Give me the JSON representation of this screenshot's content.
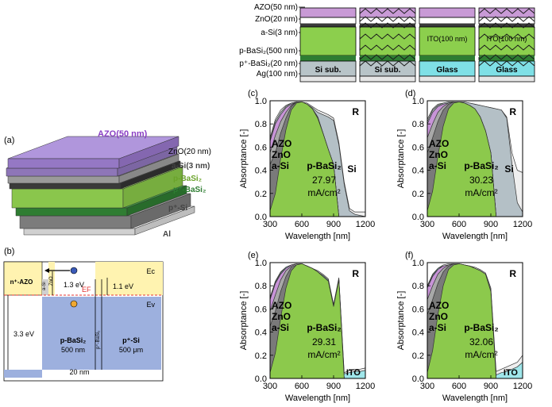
{
  "layer_stacks": {
    "labels": [
      "AZO(50 nm)",
      "ZnO(20 nm)",
      "a-Si(3 nm)",
      "p-BaSi₂(500 nm)",
      "p⁺-BaSi₂(20 nm)",
      "Ag(100 nm)"
    ],
    "stacks": [
      {
        "substrate": "Si sub.",
        "textured": false,
        "colors": {
          "azo": "#c89ad6",
          "active": "#8ccf4d",
          "sub": "#b8c4c8",
          "ag": "#e6e6e6"
        }
      },
      {
        "substrate": "Si sub.",
        "textured": true,
        "colors": {
          "azo": "#c89ad6",
          "active": "#8ccf4d",
          "sub": "#b8c4c8",
          "ag": "#e6e6e6"
        }
      },
      {
        "substrate": "Glass",
        "textured": false,
        "ito_label": "ITO(100 nm)",
        "colors": {
          "azo": "#c89ad6",
          "active": "#8ccf4d",
          "sub": "#7fe0e6",
          "ag": "#e6e6e6"
        }
      },
      {
        "substrate": "Glass",
        "textured": true,
        "ito_label": "ITO(100 nm)",
        "colors": {
          "azo": "#c89ad6",
          "active": "#8ccf4d",
          "sub": "#7fe0e6",
          "ag": "#e6e6e6"
        }
      }
    ]
  },
  "panel_a": {
    "label": "(a)",
    "layers": [
      "AZO(50 nm)",
      "ZnO(20 nm)",
      "a-Si(3 nm)",
      "p-BaSi₂",
      "p⁺-BaSi₂",
      "p⁺-Si",
      "Al"
    ],
    "colors": {
      "azo": "#a98bd0",
      "azo_text": "#8a3fc4",
      "active": "#8cc94c",
      "active_text": "#6aa32a",
      "dark": "#2e7d32",
      "si": "#8a8a8a",
      "al": "#d9d9d9"
    }
  },
  "panel_b": {
    "label": "(b)",
    "regions": [
      "n⁺-AZO",
      "a-Si",
      "ZnO",
      "p-BaSi₂",
      "500 nm",
      "p⁺-BaSi₂",
      "p⁺-Si",
      "500 μm"
    ],
    "energies": [
      "1.3 eV",
      "1.1 eV",
      "3.3 eV",
      "20 nm"
    ],
    "levels": [
      "Ec",
      "EF",
      "Ev"
    ],
    "colors": {
      "azo": "#fff3b0",
      "basi": "#9db0de",
      "ef": "#e03030"
    }
  },
  "axes": {
    "xlabel": "Wavelength [nm]",
    "ylabel": "Absorptance [-]",
    "x_ticks": [
      "300",
      "600",
      "900",
      "1200"
    ],
    "y_ticks": [
      "0.0",
      "0.2",
      "0.4",
      "0.6",
      "0.8",
      "1.0"
    ]
  },
  "chart_data": [
    {
      "panel": "(c)",
      "type": "area",
      "xlim": [
        300,
        1200
      ],
      "ylim": [
        0,
        1.0
      ],
      "current": "27.97",
      "unit": "mA/cm²",
      "layer_labels": [
        "AZO",
        "ZnO",
        "a-Si",
        "p-BaSi₂",
        "Si"
      ],
      "reflect_label": "R",
      "x": [
        300,
        350,
        400,
        450,
        500,
        550,
        600,
        650,
        700,
        750,
        800,
        850,
        900,
        950,
        1000,
        1050,
        1100,
        1150,
        1200
      ],
      "series": [
        {
          "name": "p-BaSi₂",
          "values": [
            0.05,
            0.2,
            0.5,
            0.75,
            0.92,
            0.98,
            0.99,
            0.97,
            0.93,
            0.85,
            0.72,
            0.58,
            0.45,
            0.0,
            0.0,
            0.0,
            0.0,
            0.0,
            0.0
          ]
        },
        {
          "name": "a-Si",
          "values": [
            0.45,
            0.55,
            0.72,
            0.85,
            0.95,
            0.99,
            0.99,
            0.97,
            0.93,
            0.86,
            0.72,
            0.58,
            0.45,
            0.0,
            0.0,
            0.0,
            0.0,
            0.0,
            0.0
          ]
        },
        {
          "name": "ZnO",
          "values": [
            0.55,
            0.7,
            0.82,
            0.9,
            0.96,
            0.99,
            0.99,
            0.97,
            0.93,
            0.86,
            0.72,
            0.58,
            0.45,
            0.0,
            0.0,
            0.0,
            0.0,
            0.0,
            0.0
          ]
        },
        {
          "name": "AZO",
          "values": [
            0.65,
            0.8,
            0.88,
            0.94,
            0.97,
            0.99,
            0.99,
            0.97,
            0.93,
            0.86,
            0.72,
            0.58,
            0.45,
            0.0,
            0.0,
            0.0,
            0.0,
            0.0,
            0.0
          ]
        },
        {
          "name": "Si",
          "values": [
            0.66,
            0.82,
            0.9,
            0.95,
            0.98,
            0.99,
            0.99,
            0.97,
            0.94,
            0.9,
            0.88,
            0.86,
            0.83,
            0.62,
            0.28,
            0.05,
            0.02,
            0.01,
            0.0
          ]
        },
        {
          "name": "R",
          "values": [
            0.68,
            0.84,
            0.92,
            0.96,
            0.98,
            0.99,
            0.99,
            0.98,
            0.95,
            0.92,
            0.9,
            0.88,
            0.85,
            0.64,
            0.3,
            0.07,
            0.04,
            0.04,
            0.04
          ]
        }
      ]
    },
    {
      "panel": "(d)",
      "type": "area",
      "xlim": [
        300,
        1200
      ],
      "ylim": [
        0,
        1.0
      ],
      "current": "30.23",
      "unit": "mA/cm²",
      "layer_labels": [
        "AZO",
        "ZnO",
        "a-Si",
        "p-BaSi₂",
        "Si"
      ],
      "reflect_label": "R",
      "x": [
        300,
        350,
        400,
        450,
        500,
        550,
        600,
        650,
        700,
        750,
        800,
        850,
        900,
        950,
        1000,
        1050,
        1100,
        1150,
        1200
      ],
      "series": [
        {
          "name": "p-BaSi₂",
          "values": [
            0.05,
            0.22,
            0.52,
            0.78,
            0.93,
            0.98,
            0.99,
            0.98,
            0.96,
            0.93,
            0.86,
            0.74,
            0.55,
            0.0,
            0.0,
            0.0,
            0.0,
            0.0,
            0.0
          ]
        },
        {
          "name": "a-Si",
          "values": [
            0.55,
            0.68,
            0.82,
            0.92,
            0.97,
            0.99,
            0.99,
            0.98,
            0.96,
            0.93,
            0.86,
            0.74,
            0.55,
            0.0,
            0.0,
            0.0,
            0.0,
            0.0,
            0.0
          ]
        },
        {
          "name": "ZnO",
          "values": [
            0.68,
            0.8,
            0.9,
            0.95,
            0.98,
            0.99,
            0.99,
            0.98,
            0.96,
            0.93,
            0.86,
            0.74,
            0.55,
            0.0,
            0.0,
            0.0,
            0.0,
            0.0,
            0.0
          ]
        },
        {
          "name": "AZO",
          "values": [
            0.8,
            0.9,
            0.95,
            0.97,
            0.98,
            0.99,
            0.99,
            0.98,
            0.96,
            0.93,
            0.86,
            0.74,
            0.55,
            0.0,
            0.0,
            0.0,
            0.0,
            0.0,
            0.0
          ]
        },
        {
          "name": "Si",
          "values": [
            0.82,
            0.92,
            0.96,
            0.98,
            0.99,
            0.99,
            0.99,
            0.99,
            0.98,
            0.97,
            0.96,
            0.95,
            0.94,
            0.93,
            0.92,
            0.85,
            0.45,
            0.12,
            0.04
          ]
        },
        {
          "name": "R",
          "values": [
            0.84,
            0.93,
            0.97,
            0.98,
            0.99,
            0.99,
            0.99,
            0.99,
            0.98,
            0.97,
            0.96,
            0.95,
            0.94,
            0.93,
            0.92,
            0.86,
            0.55,
            0.4,
            0.38
          ]
        }
      ]
    },
    {
      "panel": "(e)",
      "type": "area",
      "xlim": [
        300,
        1200
      ],
      "ylim": [
        0,
        1.0
      ],
      "current": "29.31",
      "unit": "mA/cm²",
      "layer_labels": [
        "AZO",
        "ZnO",
        "a-Si",
        "p-BaSi₂",
        "ITO"
      ],
      "reflect_label": "R",
      "x": [
        300,
        350,
        400,
        450,
        500,
        550,
        600,
        650,
        700,
        750,
        800,
        850,
        900,
        950,
        1000,
        1050,
        1100,
        1150,
        1200
      ],
      "series": [
        {
          "name": "p-BaSi₂",
          "values": [
            0.05,
            0.22,
            0.52,
            0.78,
            0.93,
            0.98,
            0.99,
            0.97,
            0.95,
            0.92,
            0.88,
            0.84,
            0.62,
            0.85,
            0.0,
            0.0,
            0.0,
            0.0,
            0.0
          ]
        },
        {
          "name": "a-Si",
          "values": [
            0.45,
            0.58,
            0.75,
            0.88,
            0.96,
            0.98,
            0.99,
            0.97,
            0.95,
            0.92,
            0.88,
            0.84,
            0.62,
            0.85,
            0.0,
            0.0,
            0.0,
            0.0,
            0.0
          ]
        },
        {
          "name": "ZnO",
          "values": [
            0.58,
            0.72,
            0.85,
            0.93,
            0.97,
            0.99,
            0.99,
            0.97,
            0.95,
            0.92,
            0.88,
            0.84,
            0.62,
            0.85,
            0.0,
            0.0,
            0.0,
            0.0,
            0.0
          ]
        },
        {
          "name": "AZO",
          "values": [
            0.68,
            0.82,
            0.9,
            0.95,
            0.98,
            0.99,
            0.99,
            0.97,
            0.95,
            0.92,
            0.88,
            0.84,
            0.62,
            0.85,
            0.0,
            0.0,
            0.0,
            0.0,
            0.0
          ]
        },
        {
          "name": "ITO",
          "values": [
            0.69,
            0.83,
            0.91,
            0.96,
            0.98,
            0.99,
            0.99,
            0.97,
            0.95,
            0.92,
            0.89,
            0.85,
            0.63,
            0.86,
            0.04,
            0.05,
            0.06,
            0.06,
            0.07
          ]
        },
        {
          "name": "R",
          "values": [
            0.7,
            0.84,
            0.92,
            0.96,
            0.98,
            0.99,
            0.99,
            0.97,
            0.95,
            0.93,
            0.9,
            0.86,
            0.64,
            0.87,
            0.05,
            0.07,
            0.08,
            0.08,
            0.09
          ]
        }
      ]
    },
    {
      "panel": "(f)",
      "type": "area",
      "xlim": [
        300,
        1200
      ],
      "ylim": [
        0,
        1.0
      ],
      "current": "32.06",
      "unit": "mA/cm²",
      "layer_labels": [
        "AZO",
        "ZnO",
        "a-Si",
        "p-BaSi₂",
        "ITO"
      ],
      "reflect_label": "R",
      "x": [
        300,
        350,
        400,
        450,
        500,
        550,
        600,
        650,
        700,
        750,
        800,
        850,
        900,
        950,
        1000,
        1050,
        1100,
        1150,
        1200
      ],
      "series": [
        {
          "name": "p-BaSi₂",
          "values": [
            0.05,
            0.24,
            0.55,
            0.8,
            0.94,
            0.98,
            0.99,
            0.98,
            0.97,
            0.95,
            0.93,
            0.9,
            0.75,
            0.0,
            0.0,
            0.0,
            0.0,
            0.0,
            0.0
          ]
        },
        {
          "name": "a-Si",
          "values": [
            0.55,
            0.68,
            0.82,
            0.92,
            0.97,
            0.99,
            0.99,
            0.98,
            0.97,
            0.95,
            0.93,
            0.9,
            0.75,
            0.0,
            0.0,
            0.0,
            0.0,
            0.0,
            0.0
          ]
        },
        {
          "name": "ZnO",
          "values": [
            0.68,
            0.8,
            0.9,
            0.95,
            0.98,
            0.99,
            0.99,
            0.98,
            0.97,
            0.95,
            0.93,
            0.9,
            0.75,
            0.0,
            0.0,
            0.0,
            0.0,
            0.0,
            0.0
          ]
        },
        {
          "name": "AZO",
          "values": [
            0.78,
            0.88,
            0.94,
            0.97,
            0.98,
            0.99,
            0.99,
            0.98,
            0.97,
            0.95,
            0.93,
            0.9,
            0.75,
            0.0,
            0.0,
            0.0,
            0.0,
            0.0,
            0.0
          ]
        },
        {
          "name": "ITO",
          "values": [
            0.79,
            0.89,
            0.95,
            0.97,
            0.98,
            0.99,
            0.99,
            0.98,
            0.97,
            0.95,
            0.93,
            0.9,
            0.76,
            0.03,
            0.05,
            0.06,
            0.08,
            0.1,
            0.14
          ]
        },
        {
          "name": "R",
          "values": [
            0.8,
            0.9,
            0.95,
            0.98,
            0.99,
            0.99,
            0.99,
            0.98,
            0.97,
            0.96,
            0.94,
            0.91,
            0.78,
            0.06,
            0.08,
            0.1,
            0.12,
            0.14,
            0.2
          ]
        }
      ]
    }
  ],
  "series_colors": {
    "p-BaSi₂": "#8cc94c",
    "a-Si": "#7a7a7a",
    "ZnO": "#a8a8a8",
    "AZO": "#c894d8",
    "Si": "#b4c0c6",
    "ITO": "#9fe6ea",
    "R": "#efefef"
  }
}
